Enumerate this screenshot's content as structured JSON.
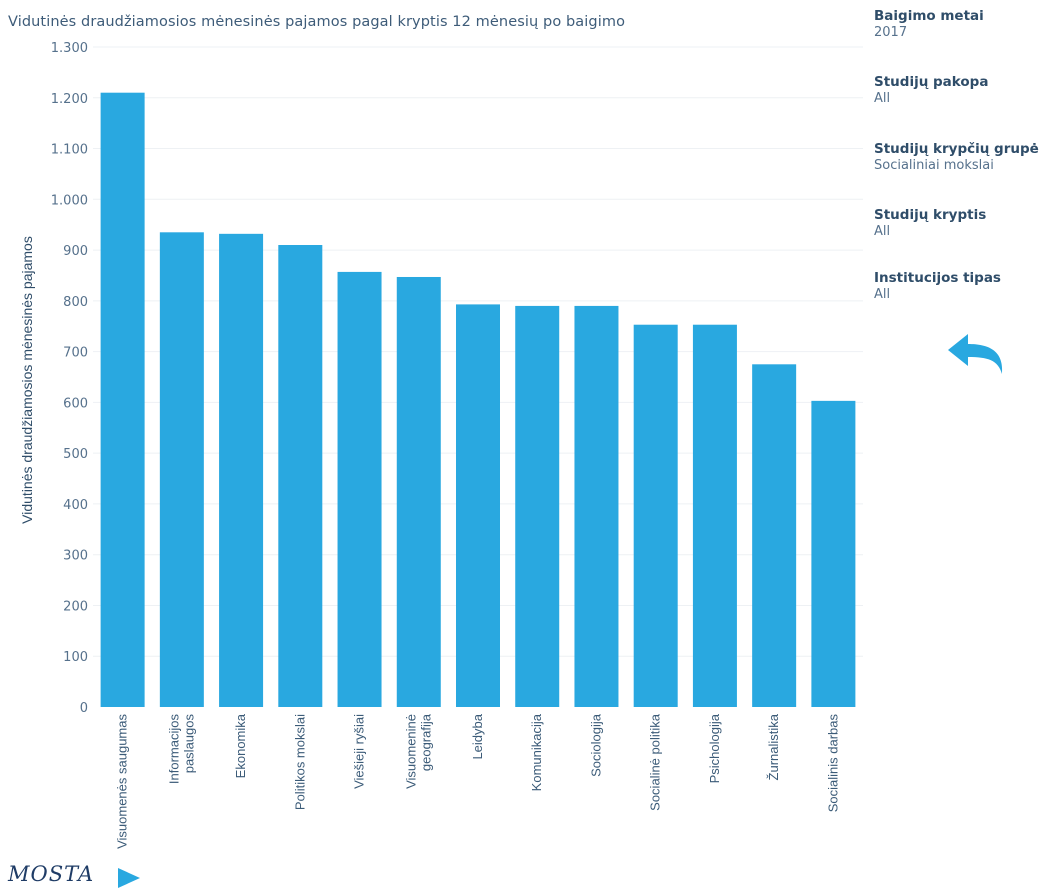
{
  "chart_data": {
    "type": "bar",
    "title": "Vidutinės draudžiamosios mėnesinės pajamos pagal kryptis 12 mėnesių po baigimo",
    "ylabel": "Vidutinės draudžiamosios mėnesinės pajamos",
    "xlabel": "",
    "ylim": [
      0,
      1300
    ],
    "yticks": [
      0,
      100,
      200,
      300,
      400,
      500,
      600,
      700,
      800,
      900,
      1000,
      1100,
      1200,
      1300
    ],
    "ytick_labels": [
      "0",
      "100",
      "200",
      "300",
      "400",
      "500",
      "600",
      "700",
      "800",
      "900",
      "1.000",
      "1.100",
      "1.200",
      "1.300"
    ],
    "grid": true,
    "bar_color": "#29a8e0",
    "categories": [
      [
        "Visuomenės saugumas"
      ],
      [
        "Informacijos",
        "paslaugos"
      ],
      [
        "Ekonomika"
      ],
      [
        "Politikos mokslai"
      ],
      [
        "Viešieji ryšiai"
      ],
      [
        "Visuomeninė",
        "geografija"
      ],
      [
        "Leidyba"
      ],
      [
        "Komunikacija"
      ],
      [
        "Sociologija"
      ],
      [
        "Socialinė politika"
      ],
      [
        "Psichologija"
      ],
      [
        "Žurnalistika"
      ],
      [
        "Socialinis darbas"
      ]
    ],
    "values": [
      1210,
      935,
      932,
      910,
      857,
      847,
      793,
      790,
      790,
      753,
      753,
      675,
      603
    ]
  },
  "filters": [
    {
      "title": "Baigimo metai",
      "value": "2017"
    },
    {
      "title": "Studijų pakopa",
      "value": "All"
    },
    {
      "title": "Studijų krypčių grupė",
      "value": "Socialiniai mokslai"
    },
    {
      "title": "Studijų kryptis",
      "value": "All"
    },
    {
      "title": "Institucijos tipas",
      "value": "All"
    }
  ],
  "logo": {
    "text": "MOSTA"
  },
  "colors": {
    "accent": "#29a8e0",
    "text": "#3b5b78",
    "logo": "#1f3c66"
  },
  "icons": {
    "back": "undo-arrow-icon",
    "logo": "play-arrow-icon"
  }
}
